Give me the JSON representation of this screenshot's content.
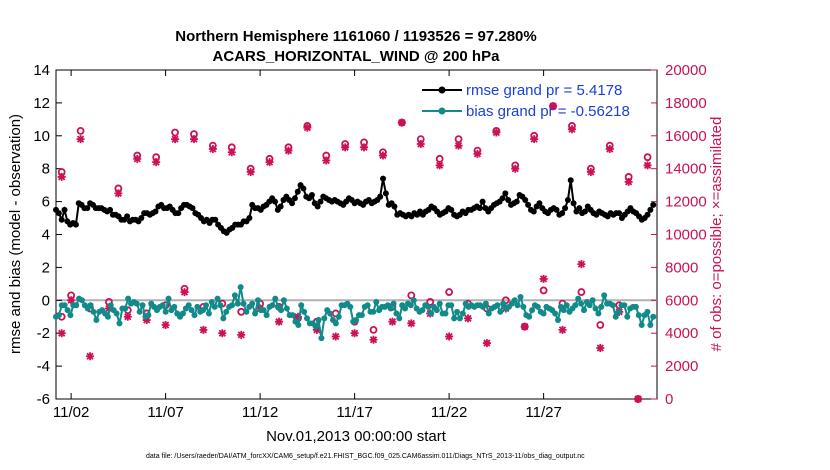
{
  "colors": {
    "rmse": "#000000",
    "bias": "#128a8a",
    "obs": "#cc1157",
    "zero_line": "#b0b0b0",
    "legend_text": "#1a3fd6"
  },
  "chart_data": {
    "type": "line",
    "title": "Northern Hemisphere 1161060 / 1193526 = 97.280%",
    "subtitle": "ACARS_HORIZONTAL_WIND @ 200 hPa",
    "xlabel": "Nov.01,2013 00:00:00 start",
    "ylabel": "rmse and bias (model - observation)",
    "y2label": "# of obs: o=possible; ×=assimilated",
    "footer": "data file: /Users/raeder/DAI/ATM_forcXX/CAM6_setup/f.e21.FHIST_BGC.f09_025.CAM6assim.011/Diags_NTrS_2013-11/obs_diag_output.nc",
    "xlim": [
      0.2,
      32
    ],
    "ylim": [
      -6,
      14
    ],
    "y2lim": [
      0,
      20000
    ],
    "x_ticks": [
      1,
      6,
      11,
      16,
      21,
      26
    ],
    "x_tick_labels": [
      "11/02",
      "11/07",
      "11/12",
      "11/17",
      "11/22",
      "11/27"
    ],
    "y_ticks": [
      -6,
      -4,
      -2,
      0,
      2,
      4,
      6,
      8,
      10,
      12,
      14
    ],
    "y_tick_labels": [
      "-6",
      "-4",
      "-2",
      "0",
      "2",
      "4",
      "6",
      "8",
      "10",
      "12",
      "14"
    ],
    "y2_ticks": [
      0,
      2000,
      4000,
      6000,
      8000,
      10000,
      12000,
      14000,
      16000,
      18000,
      20000
    ],
    "y2_tick_labels": [
      "0",
      "2000",
      "4000",
      "6000",
      "8000",
      "10000",
      "12000",
      "14000",
      "16000",
      "18000",
      "20000"
    ],
    "legend": [
      {
        "label": "rmse grand pr = 5.4178",
        "series": "rmse"
      },
      {
        "label": "bias grand pr = -0.56218",
        "series": "bias"
      }
    ],
    "series": [
      {
        "name": "rmse",
        "axis": "left",
        "values": [
          5.5,
          5.3,
          4.9,
          5.5,
          4.8,
          4.6,
          4.7,
          4.6,
          5.9,
          5.8,
          5.6,
          5.6,
          5.9,
          5.8,
          5.6,
          5.6,
          5.6,
          5.5,
          5.4,
          5.5,
          5.2,
          5.2,
          5.1,
          4.9,
          4.9,
          5.1,
          4.8,
          4.9,
          4.9,
          4.8,
          5.0,
          5.3,
          5.3,
          5.2,
          5.3,
          5.4,
          5.7,
          5.8,
          5.6,
          5.6,
          5.7,
          5.5,
          5.3,
          5.3,
          5.6,
          5.8,
          5.8,
          5.7,
          5.6,
          5.3,
          5.2,
          5.0,
          4.8,
          4.9,
          4.7,
          4.9,
          4.9,
          4.6,
          4.4,
          4.2,
          4.1,
          4.3,
          4.4,
          4.6,
          4.6,
          4.6,
          4.8,
          4.8,
          5.0,
          5.8,
          5.6,
          5.6,
          5.5,
          5.7,
          5.8,
          6.0,
          6.2,
          6.0,
          5.5,
          5.7,
          6.1,
          6.3,
          6.1,
          5.9,
          6.2,
          6.6,
          7.0,
          6.8,
          6.3,
          6.2,
          6.4,
          5.9,
          5.7,
          6.0,
          6.3,
          6.2,
          6.1,
          6.0,
          6.1,
          6.0,
          5.9,
          5.8,
          6.0,
          6.2,
          6.1,
          5.9,
          6.0,
          5.9,
          5.8,
          6.0,
          6.1,
          5.9,
          6.0,
          6.1,
          6.3,
          7.4,
          6.5,
          5.8,
          5.9,
          5.7,
          5.2,
          5.3,
          5.2,
          5.1,
          5.2,
          5.1,
          5.3,
          5.2,
          5.4,
          5.2,
          5.4,
          5.5,
          5.7,
          5.6,
          5.4,
          5.2,
          5.3,
          5.4,
          5.6,
          5.5,
          5.2,
          5.1,
          5.2,
          5.4,
          5.3,
          5.5,
          5.5,
          5.6,
          5.7,
          5.6,
          6.0,
          5.6,
          5.4,
          5.6,
          5.8,
          5.9,
          6.0,
          6.2,
          6.5,
          6.1,
          5.8,
          5.9,
          6.0,
          6.4,
          6.3,
          6.1,
          5.8,
          5.5,
          5.4,
          5.7,
          5.9,
          5.6,
          5.4,
          5.3,
          5.5,
          5.6,
          5.5,
          5.2,
          5.3,
          5.6,
          6.1,
          7.3,
          5.9,
          5.4,
          5.6,
          5.3,
          5.4,
          5.7,
          5.5,
          5.3,
          5.2,
          5.4,
          5.3,
          5.2,
          5.1,
          5.3,
          5.2,
          5.3,
          5.3,
          5.0,
          5.2,
          5.4,
          5.6,
          5.4,
          5.3,
          5.1,
          4.9,
          5.0,
          5.2,
          5.5,
          5.8
        ]
      },
      {
        "name": "bias",
        "axis": "left",
        "values": [
          -1.0,
          -0.9,
          -0.3,
          -0.3,
          -0.6,
          -0.9,
          -0.3,
          -0.3,
          0.1,
          0.0,
          -0.3,
          -0.5,
          -0.3,
          -0.7,
          -1.2,
          -0.7,
          -0.6,
          -0.8,
          -1.0,
          -0.3,
          -0.6,
          -0.8,
          -1.4,
          -0.5,
          -0.5,
          0.1,
          -0.2,
          -0.1,
          -0.2,
          -0.7,
          -0.3,
          -1.0,
          -0.9,
          -0.2,
          -0.4,
          -0.6,
          -0.4,
          -0.3,
          -0.7,
          0.1,
          -0.6,
          -0.4,
          -0.8,
          -1.0,
          -0.8,
          -0.5,
          -0.3,
          -0.6,
          -0.9,
          -0.4,
          -0.7,
          -0.6,
          -0.3,
          -0.8,
          -0.1,
          -0.4,
          0.1,
          -0.3,
          -1.1,
          -0.7,
          -0.4,
          -0.3,
          0.3,
          -0.2,
          0.8,
          -0.2,
          -0.7,
          -0.4,
          -0.2,
          -0.8,
          0.0,
          -0.6,
          -0.6,
          -0.9,
          -0.4,
          -0.3,
          0.1,
          -0.4,
          -0.6,
          0.0,
          -0.5,
          -0.9,
          -0.9,
          -1.3,
          -1.5,
          -0.3,
          -0.7,
          -1.1,
          -1.4,
          -1.4,
          -1.6,
          -1.2,
          -2.3,
          -1.1,
          -0.6,
          -0.8,
          -1.2,
          -1.4,
          -1.0,
          -0.3,
          -0.3,
          -0.2,
          -0.4,
          -1.3,
          -1.2,
          -0.9,
          -0.9,
          -0.4,
          -0.3,
          -0.7,
          -0.7,
          -0.1,
          -0.6,
          -0.4,
          -0.4,
          -0.3,
          -0.5,
          -0.2,
          -0.8,
          -1.1,
          -0.3,
          -0.5,
          -0.2,
          -0.3,
          0.0,
          -0.5,
          -0.7,
          -0.6,
          -0.3,
          -0.4,
          -0.8,
          -0.4,
          -0.6,
          -0.2,
          -0.8,
          -0.8,
          -0.3,
          -0.3,
          -1.1,
          -0.7,
          -1.1,
          -0.8,
          -0.2,
          -0.4,
          -0.3,
          -0.4,
          -0.3,
          -0.3,
          -0.4,
          -0.2,
          -0.8,
          -0.5,
          -0.4,
          -0.3,
          -0.7,
          -0.2,
          -0.5,
          -0.4,
          -0.2,
          0.0,
          -0.3,
          0.2,
          -0.4,
          -0.9,
          -1.0,
          -0.6,
          -0.3,
          -0.4,
          -0.7,
          -0.8,
          -0.4,
          -0.5,
          -0.6,
          -0.8,
          -1.2,
          -0.4,
          -0.6,
          -0.3,
          -0.7,
          -0.5,
          -0.3,
          0.1,
          -0.2,
          -0.6,
          -0.1,
          -0.3,
          0.0,
          -0.5,
          -0.8,
          -0.4,
          0.3,
          -0.2,
          -0.2,
          -0.3,
          -1.0,
          -0.7,
          -0.3,
          -0.3,
          -1.0,
          -0.5,
          -0.4,
          -0.4,
          -0.9,
          -1.5,
          -0.9,
          -0.7,
          -1.5,
          -1.0
        ]
      },
      {
        "name": "obs possible",
        "axis": "right",
        "x": [
          0.5,
          1.5,
          3.5,
          4.5,
          5.5,
          6.5,
          7.5,
          8.5,
          9.5,
          10.5,
          11.5,
          12.5,
          13.5,
          14.5,
          15.5,
          16.5,
          17.5,
          18.5,
          19.5,
          20.5,
          21.5,
          22.5,
          23.5,
          24.5,
          25.5,
          26.5,
          27.5,
          28.5,
          29.5,
          30.5,
          31.5
        ],
        "values": [
          13800,
          16300,
          12800,
          14800,
          14700,
          16200,
          16100,
          15400,
          15300,
          14000,
          14600,
          15300,
          16600,
          14800,
          15500,
          15600,
          15000,
          16800,
          15800,
          14600,
          15800,
          15100,
          16300,
          14200,
          16000,
          17800,
          16600,
          14000,
          15400,
          13500,
          14700
        ]
      },
      {
        "name": "obs assimilated",
        "axis": "right",
        "x": [
          0.5,
          1.5,
          3.5,
          4.5,
          5.5,
          6.5,
          7.5,
          8.5,
          9.5,
          10.5,
          11.5,
          12.5,
          13.5,
          14.5,
          15.5,
          16.5,
          17.5,
          18.5,
          19.5,
          20.5,
          21.5,
          22.5,
          23.5,
          24.5,
          25.5,
          26.5,
          27.5,
          28.5,
          29.5,
          30.5,
          31.5
        ],
        "values": [
          13500,
          15800,
          12500,
          14600,
          14400,
          15800,
          15800,
          15200,
          15000,
          13800,
          14400,
          15100,
          16500,
          14500,
          15300,
          15300,
          14800,
          16800,
          15500,
          14200,
          15400,
          14900,
          16200,
          14000,
          15800,
          17800,
          16400,
          13800,
          15200,
          13200,
          14200
        ]
      },
      {
        "name": "obs possible (lower)",
        "axis": "right",
        "x": [
          0.5,
          1,
          2,
          3,
          4,
          5,
          6,
          7,
          8,
          9,
          10,
          11,
          12,
          13,
          14,
          15,
          16,
          17,
          18,
          19,
          20,
          21,
          22,
          23,
          24,
          25,
          26,
          27,
          28,
          29,
          30,
          31
        ],
        "values": [
          5000,
          6300,
          5500,
          5900,
          5400,
          5200,
          5700,
          6700,
          5600,
          5800,
          5300,
          5800,
          5600,
          4900,
          4700,
          5200,
          4700,
          4200,
          5600,
          6300,
          5900,
          6500,
          5800,
          5500,
          6000,
          4400,
          6600,
          5800,
          6500,
          4500,
          5700,
          0
        ]
      },
      {
        "name": "obs assimilated (lower)",
        "axis": "right",
        "x": [
          0.5,
          1,
          2,
          3,
          4,
          5,
          6,
          7,
          8,
          9,
          10,
          11,
          12,
          13,
          14,
          15,
          16,
          17,
          18,
          19,
          20,
          21,
          22,
          23,
          24,
          25,
          26,
          27,
          28,
          29,
          30,
          31
        ],
        "values": [
          4000,
          6000,
          2600,
          5500,
          5000,
          4800,
          4500,
          6500,
          4200,
          4000,
          3900,
          5500,
          4700,
          5000,
          4200,
          3800,
          4000,
          3600,
          4700,
          4600,
          5200,
          3800,
          4900,
          3400,
          5500,
          4400,
          7300,
          4200,
          8200,
          3100,
          5300,
          0
        ]
      }
    ]
  }
}
